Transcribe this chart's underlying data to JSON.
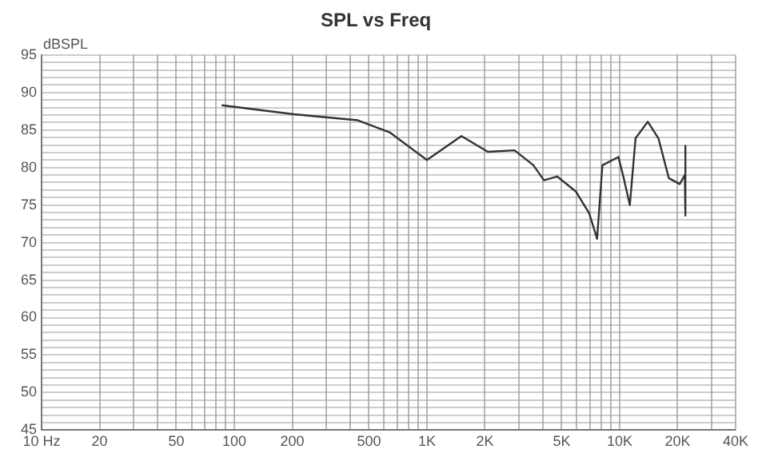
{
  "chart_data": {
    "type": "line",
    "title": "SPL vs Freq",
    "ylabel": "dBSPL",
    "x": [
      86,
      204,
      437,
      640,
      1000,
      1510,
      2070,
      2850,
      3570,
      4050,
      4750,
      5930,
      6950,
      7640,
      8140,
      9860,
      10500,
      11300,
      12100,
      14000,
      15900,
      18000,
      20500,
      21800,
      21900,
      22000
    ],
    "series": [
      {
        "color": "#333333",
        "values": [
          88.3,
          87.1,
          86.3,
          84.7,
          81.0,
          84.2,
          82.1,
          82.3,
          80.3,
          78.3,
          78.8,
          76.8,
          73.9,
          70.5,
          80.3,
          81.4,
          78.6,
          75.0,
          83.9,
          86.1,
          83.9,
          78.6,
          77.8,
          79.0,
          82.9,
          73.6
        ]
      }
    ],
    "log": "x",
    "xlim": [
      10,
      40000
    ],
    "ylim": [
      45,
      95
    ],
    "xticks": [
      {
        "value": 10,
        "label": "10 Hz"
      },
      20,
      {
        "value": 30,
        "label": null
      },
      {
        "value": 40,
        "label": null
      },
      50,
      {
        "value": 60,
        "label": null
      },
      {
        "value": 70,
        "label": null
      },
      {
        "value": 80,
        "label": null
      },
      {
        "value": 90,
        "label": null
      },
      100,
      200,
      {
        "value": 300,
        "label": null
      },
      {
        "value": 400,
        "label": null
      },
      500,
      {
        "value": 600,
        "label": null
      },
      {
        "value": 700,
        "label": null
      },
      {
        "value": 800,
        "label": null
      },
      {
        "value": 900,
        "label": null
      },
      {
        "value": 1000,
        "label": "1K"
      },
      {
        "value": 2000,
        "label": "2K"
      },
      {
        "value": 3000,
        "label": null
      },
      {
        "value": 4000,
        "label": null
      },
      {
        "value": 5000,
        "label": "5K"
      },
      {
        "value": 6000,
        "label": null
      },
      {
        "value": 7000,
        "label": null
      },
      {
        "value": 8000,
        "label": null
      },
      {
        "value": 9000,
        "label": null
      },
      {
        "value": 10000,
        "label": "10K"
      },
      {
        "value": 20000,
        "label": "20K"
      },
      {
        "value": 30000,
        "label": null
      },
      {
        "value": 40000,
        "label": "40K"
      }
    ],
    "yticks": [
      45,
      {
        "value": 46,
        "label": null
      },
      {
        "value": 47,
        "label": null
      },
      {
        "value": 48,
        "label": null
      },
      {
        "value": 49,
        "label": null
      },
      50,
      {
        "value": 51,
        "label": null
      },
      {
        "value": 52,
        "label": null
      },
      {
        "value": 53,
        "label": null
      },
      {
        "value": 54,
        "label": null
      },
      55,
      {
        "value": 56,
        "label": null
      },
      {
        "value": 57,
        "label": null
      },
      {
        "value": 58,
        "label": null
      },
      {
        "value": 59,
        "label": null
      },
      60,
      {
        "value": 61,
        "label": null
      },
      {
        "value": 62,
        "label": null
      },
      {
        "value": 63,
        "label": null
      },
      {
        "value": 64,
        "label": null
      },
      65,
      {
        "value": 66,
        "label": null
      },
      {
        "value": 67,
        "label": null
      },
      {
        "value": 68,
        "label": null
      },
      {
        "value": 69,
        "label": null
      },
      70,
      {
        "value": 71,
        "label": null
      },
      {
        "value": 72,
        "label": null
      },
      {
        "value": 73,
        "label": null
      },
      {
        "value": 74,
        "label": null
      },
      75,
      {
        "value": 76,
        "label": null
      },
      {
        "value": 77,
        "label": null
      },
      {
        "value": 78,
        "label": null
      },
      {
        "value": 79,
        "label": null
      },
      80,
      {
        "value": 81,
        "label": null
      },
      {
        "value": 82,
        "label": null
      },
      {
        "value": 83,
        "label": null
      },
      {
        "value": 84,
        "label": null
      },
      85,
      {
        "value": 86,
        "label": null
      },
      {
        "value": 87,
        "label": null
      },
      {
        "value": 88,
        "label": null
      },
      {
        "value": 89,
        "label": null
      },
      90,
      {
        "value": 91,
        "label": null
      },
      {
        "value": 92,
        "label": null
      },
      {
        "value": 93,
        "label": null
      },
      {
        "value": 94,
        "label": null
      },
      95
    ],
    "grid": true,
    "legend": false,
    "marker": "none",
    "line_style": "solid"
  }
}
